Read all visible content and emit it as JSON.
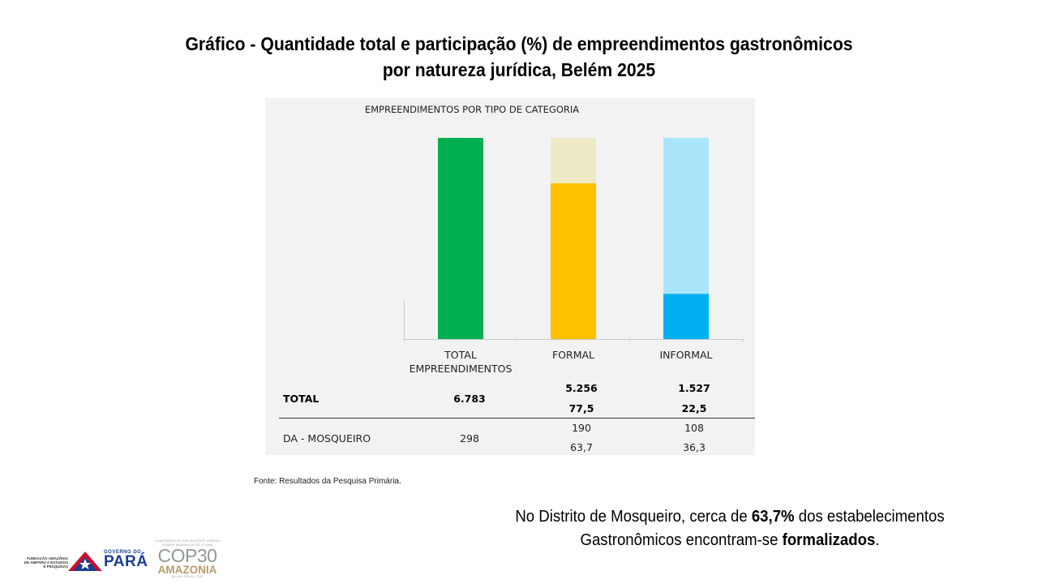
{
  "title": {
    "line1": "Gráfico - Quantidade total e participação (%) de empreendimentos gastronômicos",
    "line2": "por natureza jurídica, Belém 2025"
  },
  "colors": {
    "total": "#00b050",
    "formal_main": "#ffc000",
    "formal_rest": "#eeeac6",
    "informal_main": "#00b0f0",
    "informal_rest": "#a9e6fb",
    "panel_bg": "#f2f2f2"
  },
  "chart_data": {
    "type": "bar",
    "title": "EMPREENDIMENTOS POR TIPO DE CATEGORIA",
    "categories": [
      "TOTAL EMPREENDIMENTOS",
      "FORMAL",
      "INFORMAL"
    ],
    "stacked_percent": true,
    "ylim": [
      0,
      100
    ],
    "series": [
      {
        "values": [
          100,
          77.5,
          22.5
        ]
      },
      {
        "values": [
          0,
          22.5,
          77.5
        ]
      }
    ],
    "table": {
      "rows": [
        {
          "label": "TOTAL",
          "total": "6.783",
          "formal_count": "5.256",
          "formal_pct": "77,5",
          "informal_count": "1.527",
          "informal_pct": "22,5"
        },
        {
          "label": "DA - MOSQUEIRO",
          "total": "298",
          "formal_count": "190",
          "formal_pct": "63,7",
          "informal_count": "108",
          "informal_pct": "36,3"
        }
      ]
    }
  },
  "categories": {
    "total_line1": "TOTAL",
    "total_line2": "EMPREENDIMENTOS",
    "formal": "FORMAL",
    "informal": "INFORMAL"
  },
  "source": "Fonte: Resultados da Pesquisa Primária.",
  "note": {
    "part1": "No Distrito de Mosqueiro, cerca de ",
    "highlight1": "63,7%",
    "part2": " dos estabelecimentos",
    "part3": "Gastronômicos encontram-se ",
    "highlight2": "formalizados",
    "part4": "."
  },
  "logos": {
    "fapespa": "FUNDAÇÃO AMAZÔNIA DE AMPARO A ESTUDOS E PESQUISAS",
    "gov_line1": "GOVERNO DO",
    "gov_line2": "PARÁ",
    "cop_top": "CONFERÊNCIA DAS NAÇÕES UNIDAS SOBRE MUDANÇA DO CLIMA",
    "cop": "COP30",
    "amazonia": "AMAZONIA",
    "cop_bottom": "BELÉM • BRASIL • 2025"
  }
}
